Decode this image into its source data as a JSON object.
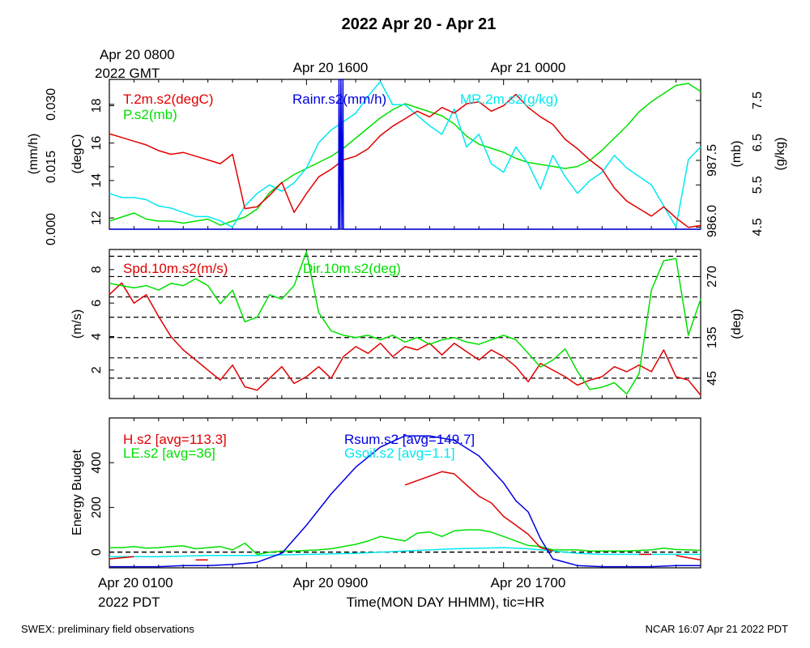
{
  "title": "2022 Apr 20 - Apr 21",
  "footer": {
    "left": "SWEX: preliminary field observations",
    "right": "NCAR 16:07 Apr 21 2022 PDT"
  },
  "top_time_labels": {
    "first_line1": "Apr 20 0800",
    "first_line2": "2022 GMT",
    "mid": "Apr 20 1600",
    "last": "Apr 21 0000"
  },
  "bottom_time_labels": {
    "first_line1": "Apr 20 0100",
    "first_line2": "2022 PDT",
    "mid": "Apr 20 0900",
    "last": "Apr 20 1700",
    "axis_title": "Time(MON DAY HHMM), tic=HR"
  },
  "colors": {
    "red": "#e00000",
    "green": "#00e000",
    "blue": "#0000e0",
    "cyan": "#00e8f0",
    "black": "#000000"
  },
  "chart_data": [
    {
      "type": "line",
      "panel": "meteorology",
      "x_hours": [
        0,
        24
      ],
      "axes": {
        "rain": {
          "label": "(mm/h)",
          "ticks": [
            "0.000",
            "0.015",
            "0.030"
          ],
          "ylim": [
            0,
            0.036
          ]
        },
        "temp": {
          "label": "(degC)",
          "ticks": [
            "12",
            "14",
            "16",
            "18"
          ],
          "ylim": [
            11.4,
            19.4
          ]
        },
        "pres": {
          "label": "(mb)",
          "ticks": [
            "986.0",
            "987.5"
          ],
          "ylim": [
            985.8,
            989.5
          ]
        },
        "mr": {
          "label": "(g/kg)",
          "ticks": [
            "4.5",
            "5.5",
            "6.5",
            "7.5"
          ],
          "ylim": [
            4.45,
            8.0
          ]
        }
      },
      "series": [
        {
          "name": "T.2m.s2(degC)",
          "axis": "temp",
          "color": "red",
          "x": [
            0,
            0.5,
            1,
            1.5,
            2,
            2.5,
            3,
            3.5,
            4,
            4.5,
            5,
            5.5,
            6,
            6.5,
            7,
            7.5,
            8,
            8.5,
            9,
            9.5,
            10,
            10.5,
            11,
            11.5,
            12,
            12.5,
            13,
            13.5,
            14,
            14.5,
            15,
            15.5,
            16,
            16.5,
            17,
            17.5,
            18,
            18.5,
            19,
            19.5,
            20,
            20.5,
            21,
            21.5,
            22,
            22.5,
            23,
            23.5,
            24
          ],
          "y": [
            16.5,
            16.3,
            16.1,
            15.9,
            15.6,
            15.4,
            15.5,
            15.3,
            15.1,
            14.9,
            15.4,
            12.5,
            12.6,
            13.2,
            13.9,
            12.3,
            13.3,
            14.2,
            14.6,
            15.1,
            15.3,
            15.7,
            16.4,
            16.9,
            17.3,
            17.7,
            17.4,
            17.9,
            17.6,
            18.1,
            18.2,
            17.7,
            18.0,
            18.6,
            17.9,
            17.4,
            17.0,
            16.2,
            15.7,
            15.1,
            14.6,
            13.6,
            12.9,
            12.5,
            12.1,
            12.6,
            12.0,
            11.5,
            11.6
          ]
        },
        {
          "name": "P.s2(mb)",
          "axis": "pres",
          "color": "green",
          "x": [
            0,
            0.5,
            1,
            1.5,
            2,
            2.5,
            3,
            3.5,
            4,
            4.5,
            5,
            5.5,
            6,
            6.5,
            7,
            7.5,
            8,
            8.5,
            9,
            9.5,
            10,
            10.5,
            11,
            11.5,
            12,
            12.5,
            13,
            13.5,
            14,
            14.5,
            15,
            15.5,
            16,
            16.5,
            17,
            17.5,
            18,
            18.5,
            19,
            19.5,
            20,
            20.5,
            21,
            21.5,
            22,
            22.5,
            23,
            23.5,
            24
          ],
          "y": [
            986.0,
            986.1,
            986.2,
            986.05,
            986.0,
            986.0,
            985.95,
            986.0,
            986.05,
            985.9,
            986.0,
            986.1,
            986.3,
            986.7,
            986.95,
            987.15,
            987.3,
            987.45,
            987.6,
            987.8,
            988.05,
            988.3,
            988.55,
            988.75,
            988.9,
            988.8,
            988.7,
            988.6,
            988.4,
            988.1,
            987.9,
            987.8,
            987.7,
            987.55,
            987.45,
            987.4,
            987.35,
            987.3,
            987.35,
            987.5,
            987.75,
            988.05,
            988.35,
            988.7,
            988.95,
            989.15,
            989.35,
            989.4,
            989.2
          ]
        },
        {
          "name": "MR.2m.s2(g/kg)",
          "axis": "mr",
          "color": "cyan",
          "x": [
            0,
            0.5,
            1,
            1.5,
            2,
            2.5,
            3,
            3.5,
            4,
            4.5,
            5,
            5.5,
            6,
            6.5,
            7,
            7.5,
            8,
            8.5,
            9,
            9.5,
            10,
            10.5,
            11,
            11.5,
            12,
            12.5,
            13,
            13.5,
            14,
            14.5,
            15,
            15.5,
            16,
            16.5,
            17,
            17.5,
            18,
            18.5,
            19,
            19.5,
            20,
            20.5,
            21,
            21.5,
            22,
            22.5,
            23,
            23.5,
            24
          ],
          "y": [
            5.3,
            5.2,
            5.2,
            5.15,
            5.0,
            4.95,
            4.85,
            4.75,
            4.75,
            4.65,
            4.5,
            5.0,
            5.3,
            5.5,
            5.35,
            5.55,
            5.9,
            6.5,
            6.8,
            7.0,
            7.2,
            7.6,
            7.95,
            7.4,
            7.4,
            7.15,
            6.9,
            6.7,
            7.3,
            6.4,
            6.7,
            6.0,
            5.8,
            6.4,
            6.0,
            5.4,
            6.2,
            5.7,
            5.3,
            5.6,
            5.8,
            6.2,
            5.9,
            5.7,
            5.5,
            5.0,
            4.5,
            6.1,
            6.4
          ]
        },
        {
          "name": "Rainr.s2(mm/h)",
          "axis": "rain",
          "color": "blue",
          "x": [
            0,
            9.3,
            9.32,
            9.36,
            9.4,
            9.44,
            9.48,
            9.5,
            24
          ],
          "y": [
            0,
            0,
            0.036,
            0,
            0.036,
            0,
            0.036,
            0,
            0
          ]
        }
      ]
    },
    {
      "type": "line",
      "panel": "wind",
      "x_hours": [
        0,
        24
      ],
      "axes": {
        "spd": {
          "label": "(m/s)",
          "ticks": [
            "2",
            "4",
            "6",
            "8"
          ],
          "ylim": [
            0.3,
            9.2
          ]
        },
        "dir": {
          "label": "(deg)",
          "ticks": [
            "45",
            "135",
            "270"
          ],
          "ylim": [
            0,
            330
          ]
        }
      },
      "dir_gridlines_deg": [
        45,
        90,
        135,
        180,
        225,
        270,
        315
      ],
      "series": [
        {
          "name": "Spd.10m.s2(m/s)",
          "axis": "spd",
          "color": "red",
          "x": [
            0,
            0.5,
            1,
            1.5,
            2,
            2.5,
            3,
            3.5,
            4,
            4.5,
            5,
            5.5,
            6,
            6.5,
            7,
            7.5,
            8,
            8.5,
            9,
            9.5,
            10,
            10.5,
            11,
            11.5,
            12,
            12.5,
            13,
            13.5,
            14,
            14.5,
            15,
            15.5,
            16,
            16.5,
            17,
            17.5,
            18,
            18.5,
            19,
            19.5,
            20,
            20.5,
            21,
            21.5,
            22,
            22.5,
            23,
            23.5,
            24
          ],
          "y": [
            6.5,
            7.2,
            6.0,
            6.5,
            5.2,
            4.0,
            3.2,
            2.6,
            2.0,
            1.4,
            2.3,
            1.0,
            0.8,
            1.5,
            2.2,
            1.2,
            1.6,
            2.2,
            1.5,
            2.8,
            3.4,
            3.0,
            3.6,
            2.8,
            3.4,
            3.2,
            3.6,
            2.9,
            3.6,
            3.1,
            2.6,
            3.2,
            2.8,
            2.2,
            1.3,
            2.4,
            2.0,
            1.6,
            1.1,
            1.4,
            1.6,
            2.2,
            1.9,
            2.3,
            1.9,
            3.2,
            1.6,
            1.4,
            0.5
          ]
        },
        {
          "name": "Dir.10m.s2(deg)",
          "axis": "dir",
          "color": "green",
          "x": [
            0,
            0.5,
            1,
            1.5,
            2,
            2.5,
            3,
            3.5,
            4,
            4.5,
            5,
            5.5,
            6,
            6.5,
            7,
            7.5,
            8,
            8.5,
            9,
            9.5,
            10,
            10.5,
            11,
            11.5,
            12,
            12.5,
            13,
            13.5,
            14,
            14.5,
            15,
            15.5,
            16,
            16.5,
            17,
            17.5,
            18,
            18.5,
            19,
            19.5,
            20,
            20.5,
            21,
            21.5,
            22,
            22.5,
            23,
            23.5,
            24
          ],
          "y": [
            255,
            250,
            245,
            250,
            240,
            255,
            250,
            265,
            250,
            210,
            240,
            170,
            180,
            230,
            220,
            250,
            325,
            190,
            150,
            140,
            135,
            140,
            130,
            140,
            125,
            135,
            120,
            130,
            135,
            125,
            120,
            130,
            140,
            130,
            100,
            70,
            85,
            110,
            60,
            20,
            25,
            35,
            10,
            55,
            240,
            305,
            310,
            140,
            220
          ]
        }
      ]
    },
    {
      "type": "line",
      "panel": "energy",
      "x_hours": [
        0,
        24
      ],
      "axes": {
        "energy": {
          "label": "Energy Budget",
          "ticks": [
            "0",
            "200",
            "400"
          ],
          "ylim": [
            -70,
            600
          ]
        }
      },
      "zero_line": true,
      "series": [
        {
          "name": "H.s2 [avg=113.3]",
          "color": "red",
          "x": [
            0,
            0.5,
            1,
            null,
            3.5,
            4,
            null,
            12,
            12.5,
            13,
            13.5,
            14,
            14.5,
            15,
            15.5,
            16,
            16.5,
            17,
            17.5,
            18,
            null,
            21.5,
            22,
            null,
            23,
            23.5,
            24
          ],
          "y": [
            -30,
            -25,
            -20,
            null,
            -35,
            -35,
            null,
            300,
            320,
            340,
            360,
            350,
            300,
            250,
            220,
            160,
            120,
            80,
            20,
            5,
            null,
            -10,
            -10,
            null,
            -15,
            -25,
            -35
          ]
        },
        {
          "name": "LE.s2 [avg=36]",
          "color": "green",
          "x": [
            0,
            0.5,
            1,
            1.5,
            2,
            2.5,
            3,
            3.5,
            4,
            4.5,
            5,
            5.5,
            6,
            6.5,
            7,
            7.5,
            8,
            8.5,
            9,
            9.5,
            10,
            10.5,
            11,
            11.5,
            12,
            12.5,
            13,
            13.5,
            14,
            14.5,
            15,
            15.5,
            16,
            16.5,
            17,
            17.5,
            18,
            18.5,
            19,
            19.5,
            20,
            20.5,
            21,
            21.5,
            22,
            22.5,
            23,
            23.5,
            24
          ],
          "y": [
            20,
            20,
            25,
            18,
            20,
            25,
            28,
            15,
            20,
            25,
            10,
            40,
            -10,
            0,
            5,
            5,
            8,
            10,
            15,
            25,
            35,
            50,
            70,
            60,
            50,
            85,
            90,
            70,
            95,
            100,
            100,
            90,
            70,
            50,
            30,
            25,
            10,
            10,
            10,
            5,
            5,
            5,
            5,
            8,
            10,
            18,
            12,
            10,
            8
          ]
        },
        {
          "name": "Rsum.s2 [avg=149.7]",
          "color": "blue",
          "x": [
            0,
            1,
            2,
            3,
            4,
            5,
            6,
            7,
            8,
            9,
            10,
            11,
            12,
            13,
            14,
            15,
            16,
            16.5,
            17,
            17.5,
            18,
            18.5,
            19,
            20,
            21,
            22,
            23,
            24
          ],
          "y": [
            -65,
            -65,
            -65,
            -60,
            -60,
            -55,
            -45,
            -5,
            120,
            260,
            380,
            470,
            520,
            520,
            500,
            430,
            310,
            230,
            180,
            60,
            -30,
            -45,
            -60,
            -65,
            -65,
            -65,
            -60,
            -60
          ]
        },
        {
          "name": "Gsoil.s2 [avg=1.1]",
          "color": "cyan",
          "x": [
            0,
            2,
            4,
            6,
            8,
            10,
            12,
            14,
            16,
            17,
            18,
            19,
            20,
            22,
            24
          ],
          "y": [
            -20,
            -20,
            -15,
            -15,
            -10,
            -5,
            5,
            15,
            20,
            15,
            5,
            -5,
            -10,
            -10,
            -10
          ]
        }
      ]
    }
  ]
}
